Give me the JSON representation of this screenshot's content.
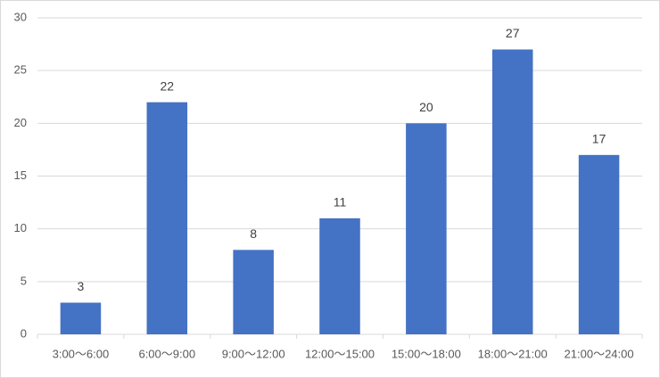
{
  "chart_data": {
    "type": "bar",
    "categories": [
      "3:00～6:00",
      "6:00～9:00",
      "9:00～12:00",
      "12:00～15:00",
      "15:00～18:00",
      "18:00～21:00",
      "21:00～24:00"
    ],
    "values": [
      3,
      22,
      8,
      11,
      20,
      27,
      17
    ],
    "color": "#4472c4",
    "ylim": [
      0,
      30
    ],
    "yticks": [
      0,
      5,
      10,
      15,
      20,
      25,
      30
    ],
    "grid": true
  }
}
